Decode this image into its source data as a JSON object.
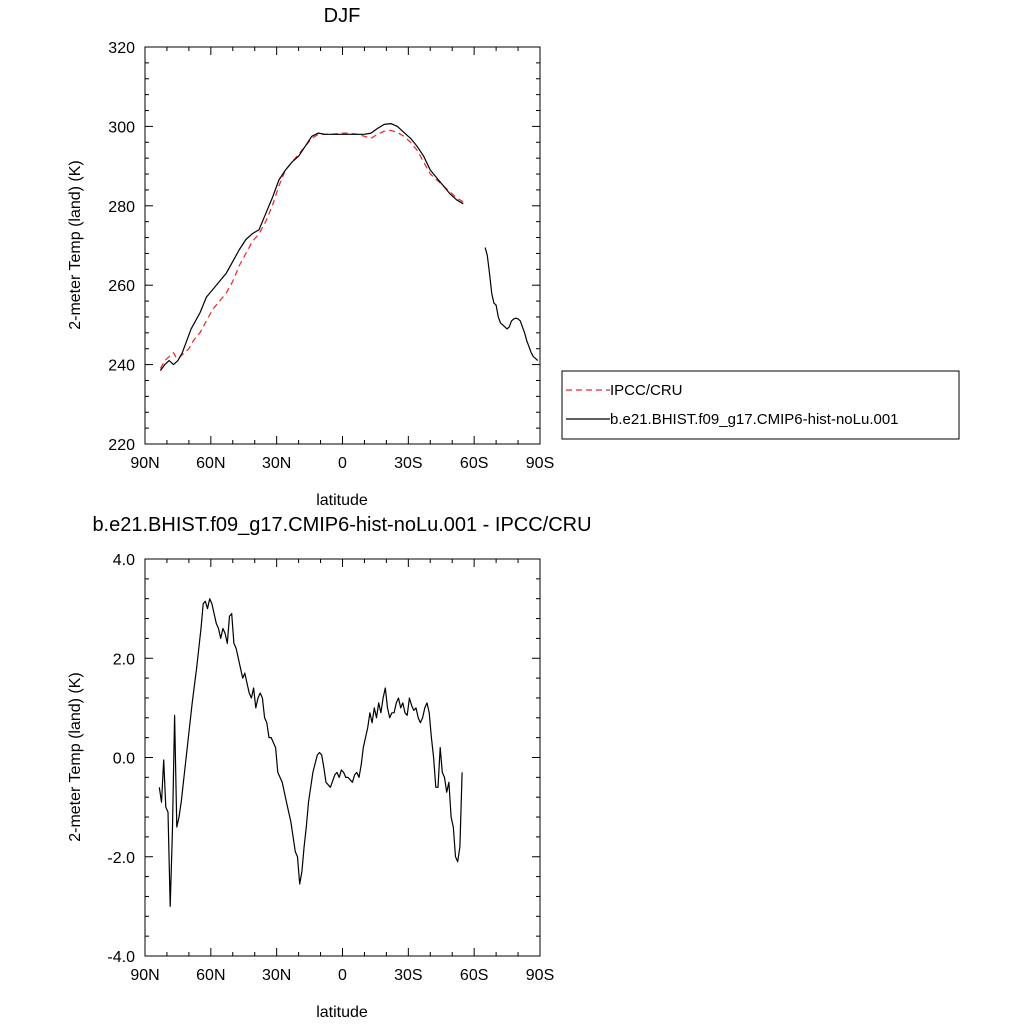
{
  "chart_data": [
    {
      "type": "line",
      "title": "DJF",
      "xlabel": "latitude",
      "ylabel": "2-meter Temp (land) (K)",
      "xlim": [
        90,
        -90
      ],
      "ylim": [
        220,
        320
      ],
      "x_tick_values": [
        90,
        60,
        30,
        0,
        -30,
        -60,
        -90
      ],
      "x_tick_labels": [
        "90N",
        "60N",
        "30N",
        "0",
        "30S",
        "60S",
        "90S"
      ],
      "y_tick_values": [
        220,
        240,
        260,
        280,
        300,
        320
      ],
      "y_tick_labels": [
        "220",
        "240",
        "260",
        "280",
        "300",
        "320"
      ],
      "legend": {
        "placement": "right",
        "entries": [
          "IPCC/CRU",
          "b.e21.BHIST.f09_g17.CMIP6-hist-noLu.001"
        ]
      },
      "series": [
        {
          "name": "IPCC/CRU",
          "color": "#e8262b",
          "dash": "dashed",
          "x": [
            83,
            81,
            79,
            77,
            76,
            75,
            74,
            72,
            70,
            68,
            65,
            62,
            59,
            56,
            53,
            50,
            47,
            44,
            41,
            38,
            35,
            32,
            29,
            26,
            23,
            20,
            17,
            14,
            11,
            8,
            5,
            2,
            -1,
            -4,
            -7,
            -10,
            -13,
            -16,
            -19,
            -22,
            -25,
            -28,
            -31,
            -34,
            -37,
            -40,
            -43,
            -46,
            -49,
            -52,
            -55
          ],
          "values": [
            239,
            241,
            242,
            243,
            242,
            241.5,
            242,
            243,
            244,
            246,
            248,
            251,
            254,
            256,
            258,
            261,
            265,
            268,
            271,
            273,
            276,
            280,
            285,
            289,
            291,
            293,
            295,
            297,
            298,
            298,
            298,
            298.2,
            298.3,
            298.2,
            298,
            297.5,
            297,
            298,
            298.8,
            299,
            298.5,
            297.5,
            296,
            294,
            291,
            288,
            286.5,
            285,
            283.5,
            282,
            281
          ]
        },
        {
          "name": "b.e21.BHIST.f09_g17.CMIP6-hist-noLu.001",
          "color": "#000000",
          "dash": "solid",
          "x": [
            83,
            81,
            79,
            77,
            75,
            73,
            71,
            69,
            67,
            65,
            62,
            59,
            56,
            53,
            50,
            47,
            44,
            41,
            38,
            35,
            32,
            29,
            26,
            23,
            20,
            17,
            14,
            11,
            8,
            5,
            2,
            -1,
            -4,
            -7,
            -10,
            -13,
            -16,
            -19,
            -22,
            -25,
            -28,
            -31,
            -34,
            -37,
            -40,
            -43,
            -46,
            -49,
            -52,
            -55
          ],
          "values": [
            238.5,
            240,
            241,
            240,
            241,
            243,
            246,
            249,
            251,
            253,
            257,
            259,
            261,
            263,
            266,
            269,
            271.5,
            273,
            274,
            278,
            282,
            286.5,
            289,
            291,
            292.5,
            295,
            297.5,
            298.3,
            298,
            298,
            298,
            298,
            298,
            298,
            298,
            298.3,
            299.5,
            300.5,
            300.7,
            300,
            298.5,
            297,
            295,
            292.5,
            289,
            287,
            285,
            283,
            281.5,
            280.5
          ]
        },
        {
          "name": "",
          "color": "#000000",
          "dash": "solid",
          "x": [
            -65,
            -66,
            -67,
            -68,
            -69,
            -70,
            -71,
            -72,
            -73,
            -74,
            -75,
            -76,
            -77,
            -78,
            -79,
            -80,
            -81,
            -82,
            -83,
            -84,
            -85,
            -86,
            -87,
            -88,
            -89
          ],
          "values": [
            269.5,
            267.5,
            263,
            258,
            255.5,
            255,
            252,
            250.5,
            250,
            249.5,
            249,
            249.5,
            251,
            251.5,
            251.7,
            251.5,
            251,
            249.5,
            248,
            246,
            244.5,
            243,
            242,
            241.5,
            241
          ]
        }
      ]
    },
    {
      "type": "line",
      "title": "b.e21.BHIST.f09_g17.CMIP6-hist-noLu.001 - IPCC/CRU",
      "xlabel": "latitude",
      "ylabel": "2-meter Temp (land) (K)",
      "xlim": [
        90,
        -90
      ],
      "ylim": [
        -4.0,
        4.0
      ],
      "x_tick_values": [
        90,
        60,
        30,
        0,
        -30,
        -60,
        -90
      ],
      "x_tick_labels": [
        "90N",
        "60N",
        "30N",
        "0",
        "30S",
        "60S",
        "90S"
      ],
      "y_tick_values": [
        -4,
        -2,
        0,
        2,
        4
      ],
      "y_tick_labels": [
        "-4.0",
        "-2.0",
        "0.0",
        "2.0",
        "4.0"
      ],
      "series": [
        {
          "color": "#000000",
          "dash": "solid",
          "x": [
            83.5,
            82.5,
            81.5,
            80.5,
            79.5,
            78.5,
            77.5,
            76.5,
            75.5,
            74.5,
            73.5,
            72.5,
            70.5,
            68.5,
            66.5,
            64.5,
            63.5,
            62.5,
            61.5,
            60.5,
            59.5,
            58.5,
            57.5,
            56.5,
            55.5,
            54.5,
            53.5,
            52.5,
            51.5,
            50.5,
            49.5,
            48.5,
            47.5,
            46.5,
            45.5,
            44.5,
            43.5,
            42.5,
            41.5,
            40.5,
            39.5,
            38.5,
            37.5,
            36.5,
            35.5,
            34.5,
            33.5,
            32.5,
            31.5,
            30.5,
            29.5,
            27.5,
            25.5,
            23.5,
            21.5,
            20.5,
            19.5,
            18.5,
            17.5,
            16.5,
            15.5,
            13.5,
            11.5,
            10.5,
            9.5,
            8.5,
            7.5,
            5.5,
            3.5,
            2.5,
            1.5,
            0.5,
            -0.5,
            -1.5,
            -2.5,
            -3.5,
            -4.5,
            -5.5,
            -6.5,
            -7.5,
            -8.5,
            -9.5,
            -10.5,
            -11.5,
            -12.5,
            -13.5,
            -14.5,
            -15.5,
            -16.5,
            -17.5,
            -18.5,
            -19.5,
            -20.5,
            -21.5,
            -22.5,
            -23.5,
            -24.5,
            -25.5,
            -26.5,
            -27.5,
            -28.5,
            -29.5,
            -30.5,
            -31.5,
            -32.5,
            -33.5,
            -34.5,
            -35.5,
            -36.5,
            -37.5,
            -38.5,
            -39.5,
            -40.5,
            -41.5,
            -42.5,
            -43.5,
            -44.5,
            -45.5,
            -46.5,
            -47.5,
            -48.5,
            -49.5,
            -50.5,
            -51.5,
            -52.5,
            -53.5,
            -54.5
          ],
          "values": [
            -0.6,
            -0.9,
            -0.05,
            -1.0,
            -1.1,
            -3.0,
            -1.5,
            0.85,
            -1.4,
            -1.2,
            -0.9,
            -0.5,
            0.3,
            1.1,
            1.8,
            2.6,
            3.1,
            3.15,
            3.0,
            3.2,
            3.1,
            2.9,
            2.7,
            2.6,
            2.4,
            2.6,
            2.5,
            2.3,
            2.85,
            2.9,
            2.3,
            2.2,
            2.0,
            1.8,
            1.6,
            1.7,
            1.5,
            1.3,
            1.2,
            1.4,
            1.0,
            1.2,
            1.3,
            1.2,
            0.8,
            0.7,
            0.4,
            0.4,
            0.3,
            0.2,
            -0.3,
            -0.5,
            -0.9,
            -1.3,
            -1.9,
            -2.0,
            -2.55,
            -2.3,
            -1.8,
            -1.4,
            -0.9,
            -0.3,
            0.05,
            0.1,
            0.05,
            -0.2,
            -0.5,
            -0.6,
            -0.35,
            -0.3,
            -0.4,
            -0.25,
            -0.3,
            -0.4,
            -0.4,
            -0.45,
            -0.5,
            -0.35,
            -0.3,
            -0.4,
            -0.15,
            0.2,
            0.4,
            0.6,
            0.9,
            0.7,
            1.0,
            0.8,
            1.1,
            0.9,
            1.2,
            1.4,
            1.0,
            0.8,
            0.9,
            0.9,
            1.1,
            1.2,
            1.0,
            1.1,
            0.9,
            0.85,
            1.2,
            1.05,
            0.95,
            1.0,
            0.8,
            0.7,
            0.8,
            1.0,
            1.1,
            0.9,
            0.4,
            0.0,
            -0.6,
            -0.6,
            0.2,
            -0.3,
            -0.4,
            -0.7,
            -0.5,
            -1.2,
            -1.4,
            -2.0,
            -2.1,
            -1.8,
            -0.3
          ]
        }
      ]
    }
  ]
}
